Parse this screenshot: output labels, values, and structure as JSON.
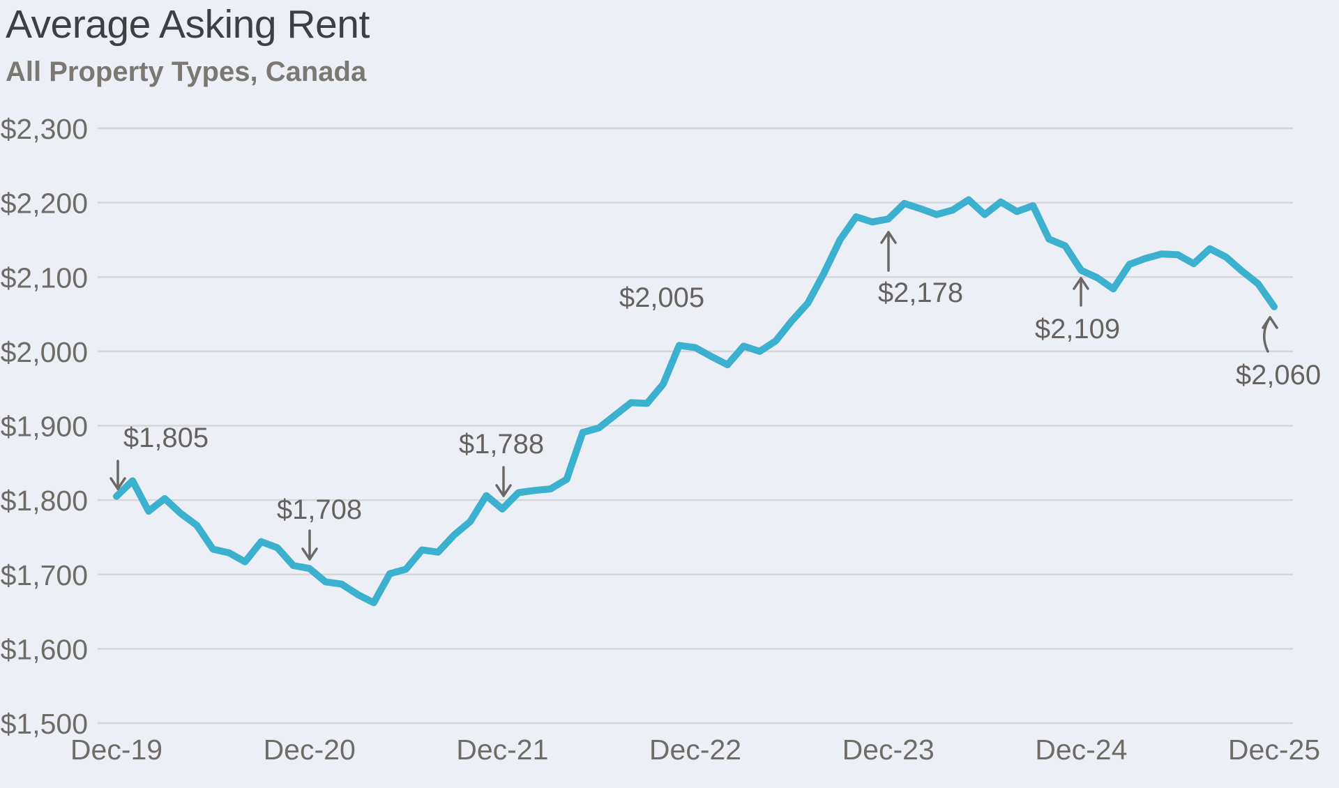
{
  "header": {
    "title": "Average Asking Rent",
    "subtitle": "All Property Types, Canada"
  },
  "colors": {
    "background": "#edeff6",
    "gridline": "#d6d7da",
    "line": "#3bb1cf",
    "tick_text": "#6f6c68",
    "annotation_text": "#66625f",
    "arrow": "#6b6865",
    "title_text": "#3c4043",
    "subtitle_text": "#7b7772"
  },
  "chart_data": {
    "type": "line",
    "title": "Average Asking Rent",
    "subtitle": "All Property Types, Canada",
    "x_start": "Dec-19",
    "x_end": "Dec-25",
    "x_frequency": "monthly",
    "grid": "horizontal",
    "legend": null,
    "ylim": [
      1500,
      2300
    ],
    "y_ticks": [
      {
        "label": "$1,500",
        "value": 1500
      },
      {
        "label": "$1,600",
        "value": 1600
      },
      {
        "label": "$1,700",
        "value": 1700
      },
      {
        "label": "$1,800",
        "value": 1800
      },
      {
        "label": "$1,900",
        "value": 1900
      },
      {
        "label": "$2,000",
        "value": 2000
      },
      {
        "label": "$2,100",
        "value": 2100
      },
      {
        "label": "$2,200",
        "value": 2200
      },
      {
        "label": "$2,300",
        "value": 2300
      }
    ],
    "x_ticks": [
      {
        "label": "Dec-19",
        "month_index": 0
      },
      {
        "label": "Dec-20",
        "month_index": 12
      },
      {
        "label": "Dec-21",
        "month_index": 24
      },
      {
        "label": "Dec-22",
        "month_index": 36
      },
      {
        "label": "Dec-23",
        "month_index": 48
      },
      {
        "label": "Dec-24",
        "month_index": 60
      },
      {
        "label": "Dec-25",
        "month_index": 72
      }
    ],
    "values": [
      1805,
      1826,
      1785,
      1802,
      1782,
      1766,
      1734,
      1729,
      1717,
      1744,
      1736,
      1712,
      1708,
      1690,
      1687,
      1673,
      1662,
      1701,
      1707,
      1733,
      1730,
      1753,
      1771,
      1806,
      1788,
      1810,
      1813,
      1815,
      1828,
      1891,
      1897,
      1914,
      1931,
      1930,
      1956,
      2008,
      2005,
      1993,
      1982,
      2007,
      2000,
      2014,
      2041,
      2065,
      2105,
      2150,
      2181,
      2174,
      2178,
      2199,
      2192,
      2184,
      2190,
      2204,
      2184,
      2201,
      2188,
      2196,
      2151,
      2142,
      2109,
      2099,
      2084,
      2117,
      2125,
      2131,
      2130,
      2118,
      2138,
      2127,
      2108,
      2091,
      2060
    ],
    "annotations": [
      {
        "label": "$1,805",
        "month_index": 0,
        "value": 1805
      },
      {
        "label": "$1,708",
        "month_index": 12,
        "value": 1708
      },
      {
        "label": "$1,788",
        "month_index": 24,
        "value": 1788
      },
      {
        "label": "$2,005",
        "month_index": 36,
        "value": 2005
      },
      {
        "label": "$2,178",
        "month_index": 48,
        "value": 2178
      },
      {
        "label": "$2,109",
        "month_index": 60,
        "value": 2109
      },
      {
        "label": "$2,060",
        "month_index": 72,
        "value": 2060
      }
    ]
  }
}
